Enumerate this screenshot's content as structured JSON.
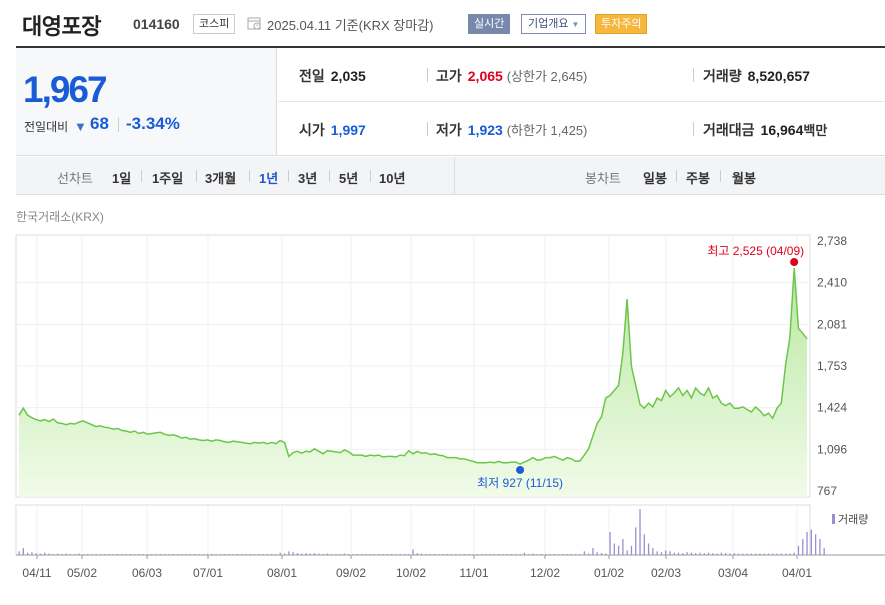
{
  "header": {
    "stock_name": "대영포장",
    "stock_code": "014160",
    "market": "코스피",
    "date_text": "2025.04.11 기준(KRX 장마감)",
    "realtime_label": "실시간",
    "corp_info_label": "기업개요",
    "caution_label": "투자주의"
  },
  "quote": {
    "price": "1,967",
    "change_label": "전일대비",
    "change_value": "68",
    "change_pct": "-3.34%",
    "prev_close_label": "전일",
    "prev_close": "2,035",
    "high_label": "고가",
    "high": "2,065",
    "upper_limit_text": "(상한가 2,645)",
    "volume_label": "거래량",
    "volume": "8,520,657",
    "open_label": "시가",
    "open": "1,997",
    "low_label": "저가",
    "low": "1,923",
    "lower_limit_text": "(하한가 1,425)",
    "trade_value_label": "거래대금",
    "trade_value": "16,964",
    "trade_value_unit": "백만"
  },
  "tabs": {
    "line_chart_label": "선차트",
    "periods": [
      "1일",
      "1주일",
      "3개월",
      "1년",
      "3년",
      "5년",
      "10년"
    ],
    "active_period": "1년",
    "candle_chart_label": "봉차트",
    "candle_periods": [
      "일봉",
      "주봉",
      "월봉"
    ]
  },
  "source_label": "한국거래소(KRX)",
  "colors": {
    "line": "#6cc64a",
    "area_top": "#b9e8a2",
    "area_bottom": "#f1fbe9",
    "price_blue": "#1a5cd6",
    "price_red": "#e0001b",
    "volume_bar": "#9b8ed0"
  },
  "chart_data": {
    "type": "area",
    "title": "",
    "y_ticks": [
      "2,738",
      "2,410",
      "2,081",
      "1,753",
      "1,424",
      "1,096",
      "767"
    ],
    "ylim": [
      767,
      2738
    ],
    "x_ticks": [
      "04/11",
      "05/02",
      "06/03",
      "07/01",
      "08/01",
      "09/02",
      "10/02",
      "11/01",
      "12/02",
      "01/02",
      "02/03",
      "03/04",
      "04/01"
    ],
    "max_annotation": "최고 2,525 (04/09)",
    "min_annotation": "최저 927 (11/15)",
    "volume_legend": "거래량",
    "series": [
      {
        "values": [
          1365,
          1420,
          1365,
          1345,
          1330,
          1320,
          1330,
          1315,
          1335,
          1305,
          1300,
          1290,
          1300,
          1295,
          1310,
          1320,
          1305,
          1290,
          1275,
          1280,
          1270,
          1265,
          1255,
          1260,
          1245,
          1240,
          1230,
          1240,
          1220,
          1230,
          1215,
          1220,
          1225,
          1230,
          1215,
          1205,
          1210,
          1200,
          1185,
          1190,
          1175,
          1180,
          1170,
          1165,
          1170,
          1160,
          1170,
          1165,
          1155,
          1150,
          1160,
          1155,
          1150,
          1145,
          1140,
          1150,
          1145,
          1150,
          1140,
          1150,
          1140,
          1165,
          1150,
          1040,
          1070,
          1080,
          1065,
          1080,
          1075,
          1100,
          1080,
          1060,
          1085,
          1080,
          1075,
          1070,
          1090,
          1075,
          1050,
          1050,
          1050,
          1040,
          1050,
          1045,
          1050,
          1035,
          1040,
          1040,
          1035,
          1050,
          1045,
          1085,
          1060,
          1080,
          1065,
          1070,
          1055,
          1060,
          1050,
          1045,
          1030,
          1030,
          1030,
          1020,
          1020,
          1010,
          1000,
          990,
          990,
          990,
          995,
          990,
          1000,
          990,
          990,
          995,
          995,
          980,
          995,
          1010,
          1030,
          1010,
          1015,
          1030,
          1030,
          1040,
          1025,
          1010,
          1030,
          1020,
          1000,
          1005,
          1050,
          1100,
          1200,
          1300,
          1350,
          1500,
          1520,
          1560,
          1600,
          1850,
          2280,
          1750,
          1600,
          1450,
          1420,
          1460,
          1430,
          1500,
          1480,
          1560,
          1510,
          1540,
          1580,
          1520,
          1560,
          1500,
          1580,
          1540,
          1520,
          1580,
          1500,
          1520,
          1460,
          1440,
          1460,
          1420,
          1420,
          1430,
          1410,
          1390,
          1430,
          1400,
          1360,
          1380,
          1340,
          1420,
          1460,
          1760,
          1980,
          2525,
          2050,
          2010,
          1967
        ],
        "volume_rel": [
          0.08,
          0.15,
          0.05,
          0.06,
          0.04,
          0.03,
          0.05,
          0.03,
          0.02,
          0.03,
          0.02,
          0.03,
          0.02,
          0.02,
          0.03,
          0.02,
          0.02,
          0.02,
          0.02,
          0.02,
          0.02,
          0.02,
          0.02,
          0.02,
          0.02,
          0.02,
          0.02,
          0.02,
          0.02,
          0.02,
          0.02,
          0.02,
          0.02,
          0.02,
          0.02,
          0.02,
          0.02,
          0.02,
          0.02,
          0.02,
          0.02,
          0.02,
          0.02,
          0.02,
          0.02,
          0.02,
          0.02,
          0.02,
          0.02,
          0.02,
          0.02,
          0.02,
          0.02,
          0.02,
          0.02,
          0.02,
          0.02,
          0.02,
          0.02,
          0.02,
          0.02,
          0.05,
          0.03,
          0.08,
          0.06,
          0.04,
          0.03,
          0.04,
          0.03,
          0.04,
          0.03,
          0.02,
          0.03,
          0.02,
          0.02,
          0.02,
          0.03,
          0.02,
          0.02,
          0.02,
          0.02,
          0.02,
          0.02,
          0.02,
          0.02,
          0.02,
          0.02,
          0.02,
          0.02,
          0.02,
          0.02,
          0.02,
          0.12,
          0.04,
          0.03,
          0.02,
          0.02,
          0.02,
          0.02,
          0.02,
          0.02,
          0.02,
          0.02,
          0.02,
          0.02,
          0.02,
          0.02,
          0.02,
          0.02,
          0.02,
          0.02,
          0.02,
          0.02,
          0.02,
          0.02,
          0.02,
          0.02,
          0.02,
          0.05,
          0.02,
          0.03,
          0.02,
          0.02,
          0.02,
          0.02,
          0.02,
          0.02,
          0.02,
          0.02,
          0.02,
          0.02,
          0.02,
          0.08,
          0.03,
          0.15,
          0.06,
          0.04,
          0.03,
          0.5,
          0.25,
          0.2,
          0.35,
          0.1,
          0.2,
          0.6,
          1.0,
          0.45,
          0.25,
          0.15,
          0.08,
          0.06,
          0.1,
          0.08,
          0.05,
          0.05,
          0.04,
          0.06,
          0.05,
          0.04,
          0.05,
          0.04,
          0.05,
          0.04,
          0.03,
          0.05,
          0.04,
          0.03,
          0.04,
          0.03,
          0.03,
          0.03,
          0.03,
          0.03,
          0.03,
          0.03,
          0.03,
          0.03,
          0.03,
          0.03,
          0.03,
          0.03,
          0.05,
          0.2,
          0.35,
          0.5,
          0.55,
          0.45,
          0.35,
          0.15
        ]
      }
    ]
  }
}
